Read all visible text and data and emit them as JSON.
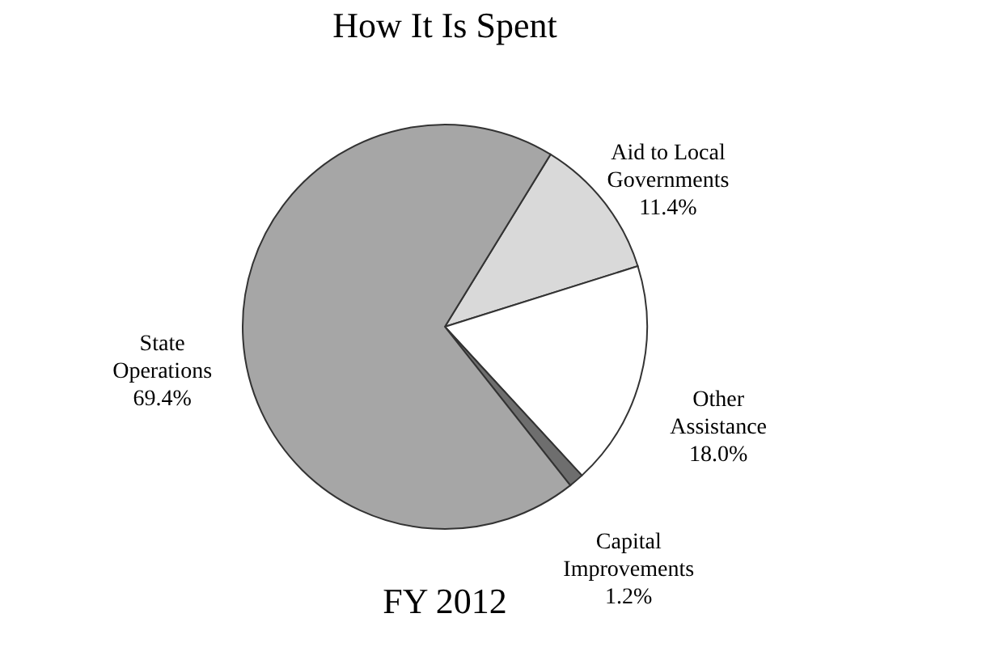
{
  "chart_data": {
    "type": "pie",
    "title": "How It Is Spent",
    "categories": [
      "Aid to Local Governments",
      "Other Assistance",
      "Capital Improvements",
      "State Operations"
    ],
    "values": [
      11.4,
      18.0,
      1.2,
      69.4
    ],
    "value_labels": [
      "11.4%",
      "18.0%",
      "1.2%",
      "69.4%"
    ],
    "colors": [
      "#d9d9d9",
      "#ffffff",
      "#6e6e6e",
      "#a6a6a6"
    ],
    "legend": false,
    "annotations": [
      "FY 2012"
    ]
  }
}
